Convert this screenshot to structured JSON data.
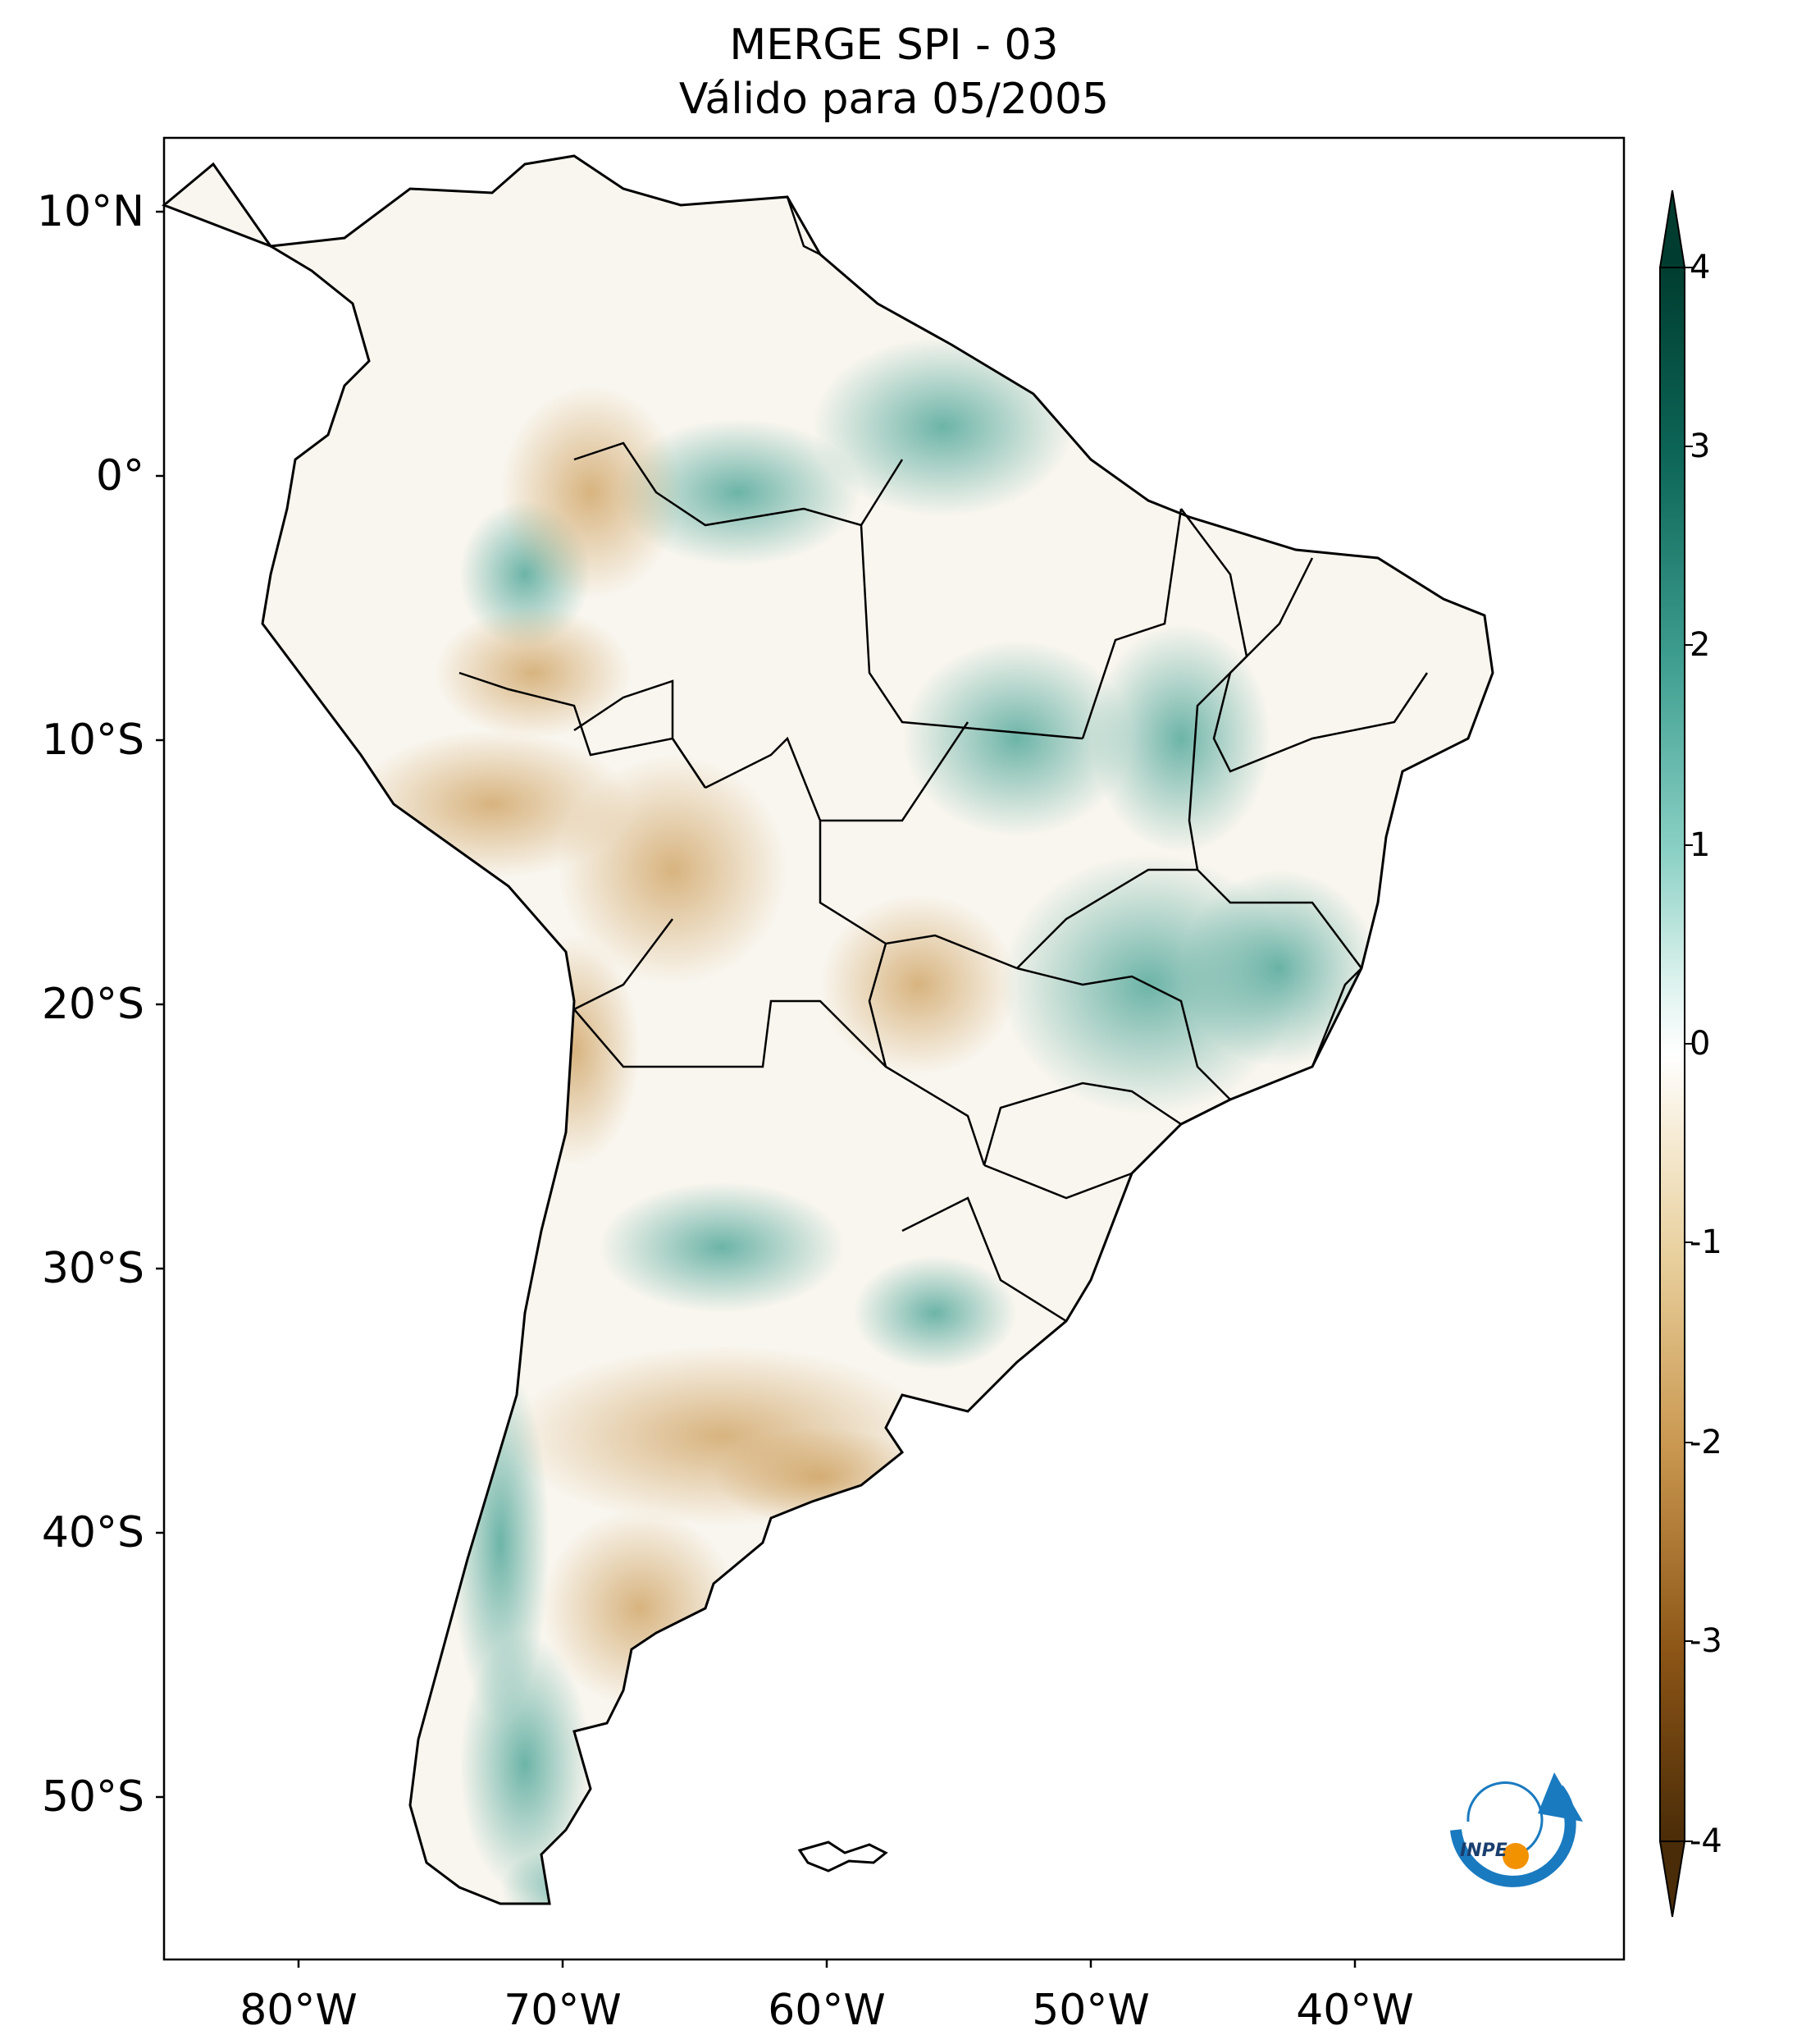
{
  "title": {
    "line1": "MERGE   SPI - 03",
    "line2": "Válido para 05/2005"
  },
  "axes": {
    "lat_labels": [
      "10°N",
      "0°",
      "10°S",
      "20°S",
      "30°S",
      "40°S",
      "50°S"
    ],
    "lon_labels": [
      "80°W",
      "70°W",
      "60°W",
      "50°W",
      "40°W"
    ]
  },
  "colorbar": {
    "ticks": [
      "4",
      "3",
      "2",
      "1",
      "0",
      "-1",
      "-2",
      "-3",
      "-4"
    ],
    "colors": {
      "strong_dry": "#4a2c08",
      "dry": "#a36a22",
      "light_dry": "#e8cf9c",
      "neutral": "#ffffff",
      "light_wet": "#bfe6df",
      "wet": "#3e9e90",
      "strong_wet": "#003d30"
    }
  },
  "logo": {
    "text": "INPE"
  }
}
